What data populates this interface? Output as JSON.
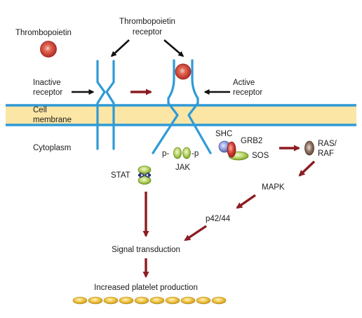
{
  "labels": {
    "thrombopoietin": "Thrombopoietin",
    "receptor_line1": "Thrombopoietin",
    "receptor_line2": "receptor",
    "inactive_line1": "Inactive",
    "inactive_line2": "receptor",
    "active_line1": "Active",
    "active_line2": "receptor",
    "cell_line1": "Cell",
    "cell_line2": "membrane",
    "cytoplasm": "Cytoplasm",
    "p_left": "p-",
    "p_right": "-p",
    "jak": "JAK",
    "stat": "STAT",
    "shc": "SHC",
    "grb2": "GRB2",
    "sos": "SOS",
    "ras_line1": "RAS/",
    "ras_line2": "RAF",
    "mapk": "MAPK",
    "p42": "p42/44",
    "signal": "Signal transduction",
    "increased": "Increased platelet production"
  },
  "colors": {
    "membrane_fill": "#fbe6a6",
    "membrane_line": "#2f9ad6",
    "arrow_dark_red": "#8b1d22",
    "arrow_black": "#111111",
    "ligand_red": "#c8322c",
    "jak_green": "#9cc23e",
    "shc_blue": "#7f8fcf",
    "grb2_red": "#c8322c",
    "sos_green": "#9cc23e",
    "ras_brown": "#7a5e4e",
    "platelet_yellow": "#e8b82a"
  }
}
